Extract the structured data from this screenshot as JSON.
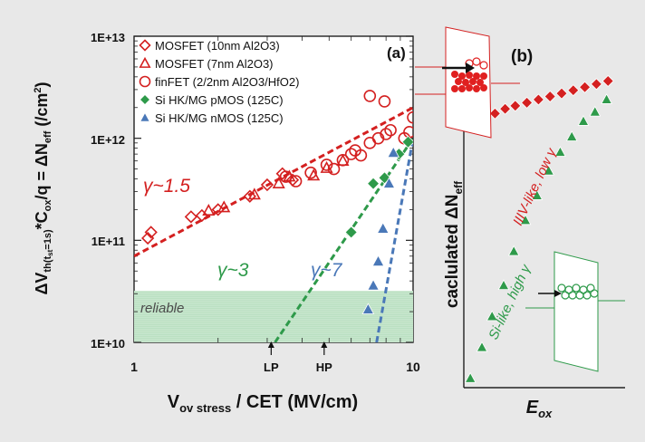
{
  "chart_data": [
    {
      "type": "scatter",
      "panel_label": "(a)",
      "xlabel_main": "V",
      "xlabel_sub": "ov stress",
      "xlabel_rest": " / CET (MV/cm)",
      "ylabel_a": "ΔV",
      "ylabel_b": "th(t",
      "ylabel_c": "st",
      "ylabel_d": "=1s)",
      "ylabel_e": "*C",
      "ylabel_f": "ox",
      "ylabel_g": "/q = ΔN",
      "ylabel_h": "eff",
      "ylabel_i": " (/cm",
      "ylabel_j": "2",
      "ylabel_k": ")",
      "x_scale": "log",
      "y_scale": "log",
      "xlim": [
        1,
        10
      ],
      "ylim": [
        10000000000.0,
        10000000000000.0
      ],
      "x_tick_labels": [
        "1",
        "10"
      ],
      "y_ticks": [
        10000000000.0,
        100000000000.0,
        1000000000000.0,
        10000000000000.0
      ],
      "y_tick_labels": [
        "1E+10",
        "1E+11",
        "1E+12",
        "1E+13"
      ],
      "reliable_band": {
        "label": "reliable",
        "y_range": [
          10000000000.0,
          32000000000.0
        ]
      },
      "annotations": [
        {
          "text": "γ~1.5",
          "color": "#d42020"
        },
        {
          "text": "γ~3",
          "color": "#2e9a4a"
        },
        {
          "text": "γ~7",
          "color": "#4a78b8"
        }
      ],
      "markers": [
        {
          "text": "LP",
          "x": 3.1
        },
        {
          "text": "HP",
          "x": 4.8
        }
      ],
      "legend_position": "top",
      "series": [
        {
          "name": "MOSFET (10nm Al2O3)",
          "marker": "diamond-open",
          "color": "#d42020",
          "x": [
            1.12,
            1.15,
            1.6,
            1.75,
            2.0,
            2.6,
            3.0,
            3.4,
            3.7
          ],
          "y": [
            105000000000.0,
            120000000000.0,
            170000000000.0,
            175000000000.0,
            200000000000.0,
            270000000000.0,
            350000000000.0,
            450000000000.0,
            390000000000.0
          ]
        },
        {
          "name": "MOSFET (7nm Al2O3)",
          "marker": "triangle-open",
          "color": "#d42020",
          "x": [
            1.85,
            2.1,
            2.7,
            3.3,
            3.6,
            4.4,
            4.9,
            5.6
          ],
          "y": [
            195000000000.0,
            210000000000.0,
            280000000000.0,
            360000000000.0,
            420000000000.0,
            430000000000.0,
            510000000000.0,
            600000000000.0
          ]
        },
        {
          "name": "finFET (2/2nm Al2O3/HfO2)",
          "marker": "circle-open",
          "color": "#d42020",
          "x": [
            3.5,
            3.8,
            4.3,
            4.9,
            5.2,
            5.6,
            6.0,
            6.2,
            6.5,
            7.0,
            7.5,
            8.0,
            8.3,
            9.3,
            9.7,
            10.0,
            7.0,
            7.9
          ],
          "y": [
            420000000000.0,
            380000000000.0,
            460000000000.0,
            550000000000.0,
            500000000000.0,
            610000000000.0,
            700000000000.0,
            760000000000.0,
            680000000000.0,
            900000000000.0,
            1000000000000.0,
            1100000000000.0,
            1200000000000.0,
            1000000000000.0,
            1150000000000.0,
            1600000000000.0,
            2600000000000.0,
            2300000000000.0
          ]
        },
        {
          "name": "Si HK/MG pMOS (125C)",
          "marker": "diamond-filled",
          "color": "#2e9a4a",
          "x": [
            6.0,
            7.2,
            7.9,
            8.9,
            9.6
          ],
          "y": [
            120000000000.0,
            360000000000.0,
            410000000000.0,
            700000000000.0,
            920000000000.0
          ]
        },
        {
          "name": "Si HK/MG nMOS (125C)",
          "marker": "triangle-filled",
          "color": "#4a78b8",
          "x": [
            6.9,
            7.2,
            7.5,
            7.8,
            8.2,
            8.5
          ],
          "y": [
            21000000000.0,
            36000000000.0,
            62000000000.0,
            130000000000.0,
            360000000000.0,
            720000000000.0
          ]
        }
      ],
      "fit_lines": [
        {
          "color": "#d42020",
          "x": [
            1.0,
            10.0
          ],
          "y": [
            70000000000.0,
            2000000000000.0
          ]
        },
        {
          "color": "#2e9a4a",
          "x": [
            3.2,
            10.0
          ],
          "y": [
            10000000000.0,
            1000000000000.0
          ]
        },
        {
          "color": "#4a78b8",
          "x": [
            7.4,
            10.0
          ],
          "y": [
            10000000000.0,
            1000000000000.0
          ]
        }
      ]
    },
    {
      "type": "scatter",
      "panel_label": "(b)",
      "xlabel": "E",
      "xlabel_sub": "ox",
      "ylabel": "caclulated  ΔN",
      "ylabel_sub": "eff",
      "axes_unlabeled": true,
      "annotations": [
        {
          "text": "IIIV-like, low γ",
          "color": "#d42020"
        },
        {
          "text": "Si-like, high γ",
          "color": "#2e9a4a"
        }
      ],
      "series": [
        {
          "name": "IIIV-like, low γ",
          "marker": "diamond-filled",
          "color": "#d42020",
          "x": [
            0.05,
            0.12,
            0.19,
            0.26,
            0.33,
            0.41,
            0.49,
            0.57,
            0.65,
            0.73,
            0.81,
            0.89,
            0.97
          ],
          "y": [
            0.85,
            0.87,
            0.885,
            0.9,
            0.91,
            0.92,
            0.93,
            0.94,
            0.95,
            0.96,
            0.97,
            0.98,
            0.99
          ]
        },
        {
          "name": "Si-like, high γ",
          "marker": "triangle-filled",
          "color": "#2e9a4a",
          "x": [
            0.02,
            0.1,
            0.17,
            0.25,
            0.32,
            0.4,
            0.48,
            0.56,
            0.64,
            0.72,
            0.8,
            0.88,
            0.96
          ],
          "y": [
            0.03,
            0.13,
            0.23,
            0.33,
            0.44,
            0.54,
            0.62,
            0.7,
            0.76,
            0.81,
            0.86,
            0.89,
            0.93
          ]
        }
      ]
    }
  ]
}
